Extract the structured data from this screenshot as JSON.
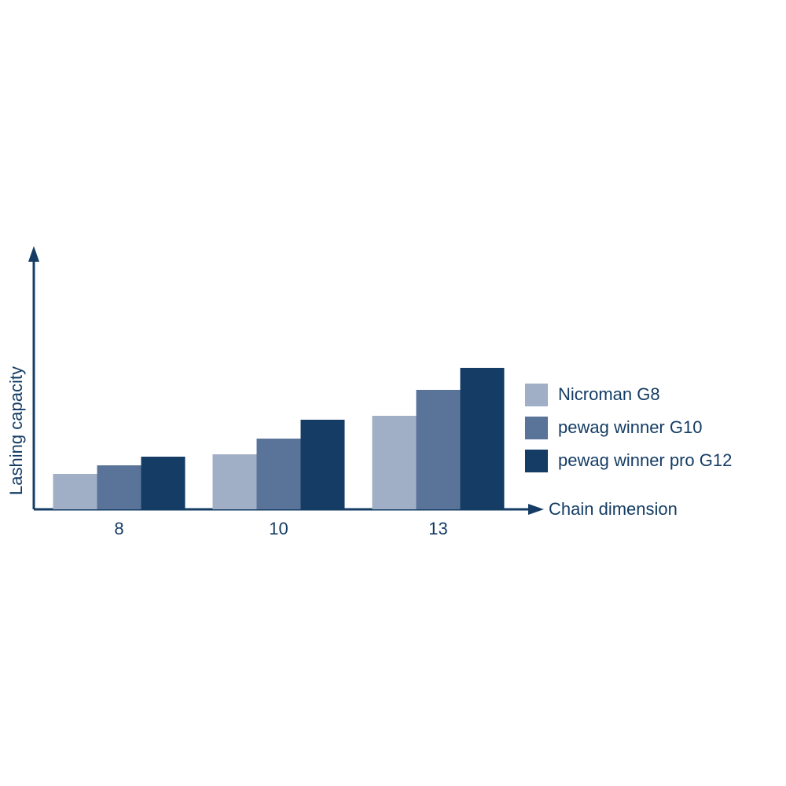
{
  "chart_data": {
    "type": "bar",
    "x_label": "Chain dimension",
    "y_label": "Lashing capacity",
    "categories": [
      "8",
      "10",
      "13"
    ],
    "series": [
      {
        "name": "Nicroman G8",
        "color": "#a0aec6",
        "values": [
          45,
          70,
          119
        ]
      },
      {
        "name": "pewag winner G10",
        "color": "#5a7399",
        "values": [
          56,
          90,
          152
        ]
      },
      {
        "name": "pewag winner pro G12",
        "color": "#143c64",
        "values": [
          67,
          114,
          180
        ]
      }
    ],
    "ylim": [
      0,
      330
    ],
    "legend": "right"
  }
}
